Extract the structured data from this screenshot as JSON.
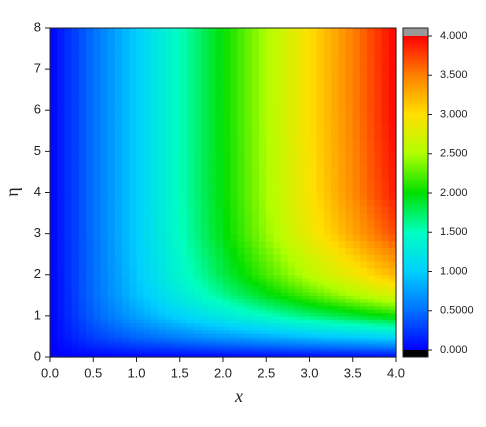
{
  "chart_data": {
    "type": "heatmap",
    "xlabel": "x",
    "ylabel": "η",
    "x": [
      0,
      0.5,
      1,
      1.5,
      2,
      2.5,
      3,
      3.5,
      4
    ],
    "y": [
      0,
      0.25,
      0.5,
      1,
      1.5,
      2,
      3,
      4,
      6,
      8
    ],
    "z": [
      [
        0,
        0,
        0,
        0,
        0,
        0,
        0,
        0,
        0
      ],
      [
        0,
        0.16,
        0.25,
        0.31,
        0.37,
        0.42,
        0.47,
        0.51,
        0.55
      ],
      [
        0,
        0.29,
        0.46,
        0.6,
        0.72,
        0.82,
        0.92,
        1.0,
        1.08
      ],
      [
        0,
        0.43,
        0.76,
        1.04,
        1.27,
        1.48,
        1.68,
        1.85,
        2.02
      ],
      [
        0,
        0.48,
        0.91,
        1.28,
        1.62,
        1.93,
        2.21,
        2.48,
        2.73
      ],
      [
        0,
        0.49,
        0.96,
        1.4,
        1.81,
        2.2,
        2.55,
        2.89,
        3.22
      ],
      [
        0,
        0.5,
        1.0,
        1.48,
        1.96,
        2.42,
        2.87,
        3.3,
        3.72
      ],
      [
        0,
        0.5,
        1.0,
        1.5,
        1.99,
        2.48,
        2.96,
        3.44,
        3.91
      ],
      [
        0,
        0.5,
        1.0,
        1.5,
        2,
        2.5,
        3.0,
        3.49,
        3.99
      ],
      [
        0,
        0.5,
        1.0,
        1.5,
        2,
        2.5,
        3.0,
        3.5,
        4.0
      ]
    ],
    "xlim": [
      0,
      4
    ],
    "ylim": [
      0,
      8
    ],
    "xticks": [
      {
        "value": 0,
        "label": "0.0"
      },
      {
        "value": 0.5,
        "label": "0.5"
      },
      {
        "value": 1,
        "label": "1.0"
      },
      {
        "value": 1.5,
        "label": "1.5"
      },
      {
        "value": 2,
        "label": "2.0"
      },
      {
        "value": 2.5,
        "label": "2.5"
      },
      {
        "value": 3,
        "label": "3.0"
      },
      {
        "value": 3.5,
        "label": "3.5"
      },
      {
        "value": 4,
        "label": "4.0"
      }
    ],
    "yticks": [
      0,
      1,
      2,
      3,
      4,
      5,
      6,
      7,
      8
    ],
    "zlim": [
      0,
      4
    ],
    "zticks": [
      {
        "value": 0,
        "label": "0.000"
      },
      {
        "value": 0.5,
        "label": "0.5000"
      },
      {
        "value": 1,
        "label": "1.000"
      },
      {
        "value": 1.5,
        "label": "1.500"
      },
      {
        "value": 2,
        "label": "2.000"
      },
      {
        "value": 2.5,
        "label": "2.500"
      },
      {
        "value": 3,
        "label": "3.000"
      },
      {
        "value": 3.5,
        "label": "3.500"
      },
      {
        "value": 4,
        "label": "4.000"
      }
    ],
    "colormap": [
      "#0000ff",
      "#0070ff",
      "#00d0ff",
      "#00ffc0",
      "#00e000",
      "#b0ff00",
      "#ffe000",
      "#ff8000",
      "#ff0000"
    ],
    "over_color": "#999999",
    "under_color": "#000000"
  }
}
